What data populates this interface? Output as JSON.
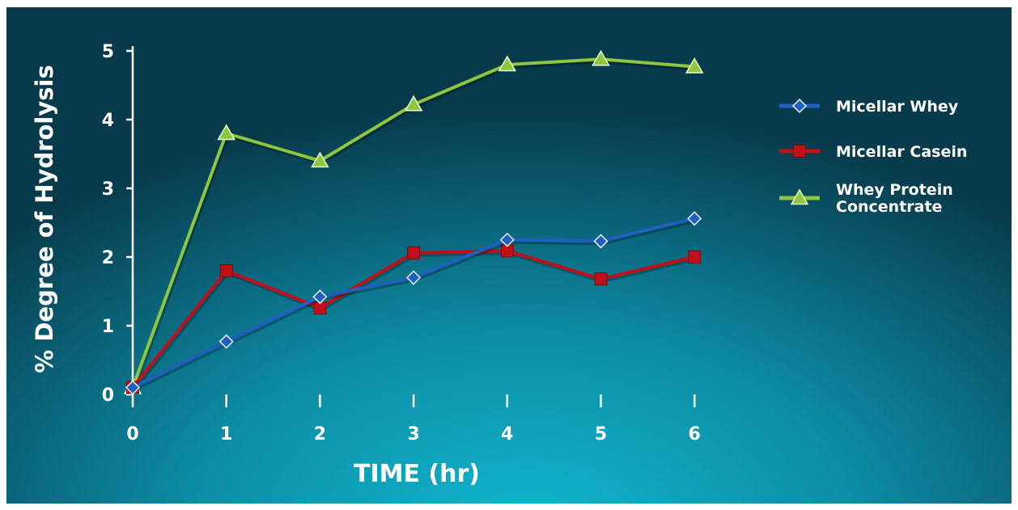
{
  "chart_data": {
    "type": "line",
    "xlabel": "TIME (hr)",
    "ylabel": "% Degree of Hydrolysis",
    "x": [
      0,
      1,
      2,
      3,
      4,
      5,
      6
    ],
    "x_tick_labels": [
      "0",
      "1",
      "2",
      "3",
      "4",
      "5",
      "6"
    ],
    "y_tick_labels": [
      "0",
      "1",
      "2",
      "3",
      "4",
      "5"
    ],
    "xlim": [
      0,
      6
    ],
    "ylim": [
      0,
      5
    ],
    "legend_position": "right",
    "series": [
      {
        "name": "Micellar Whey",
        "marker": "diamond",
        "color": "#1f5fbf",
        "values": [
          0.1,
          0.77,
          1.42,
          1.7,
          2.25,
          2.23,
          2.56
        ]
      },
      {
        "name": "Micellar Casein",
        "marker": "square",
        "color": "#c0101a",
        "values": [
          0.1,
          1.8,
          1.26,
          2.06,
          2.09,
          1.68,
          2.0
        ]
      },
      {
        "name": "Whey Protein Concentrate",
        "legend_lines": [
          "Whey Protein",
          "Concentrate"
        ],
        "marker": "triangle",
        "color": "#8ec63f",
        "values": [
          0.1,
          3.8,
          3.4,
          4.22,
          4.8,
          4.88,
          4.77
        ]
      }
    ]
  }
}
